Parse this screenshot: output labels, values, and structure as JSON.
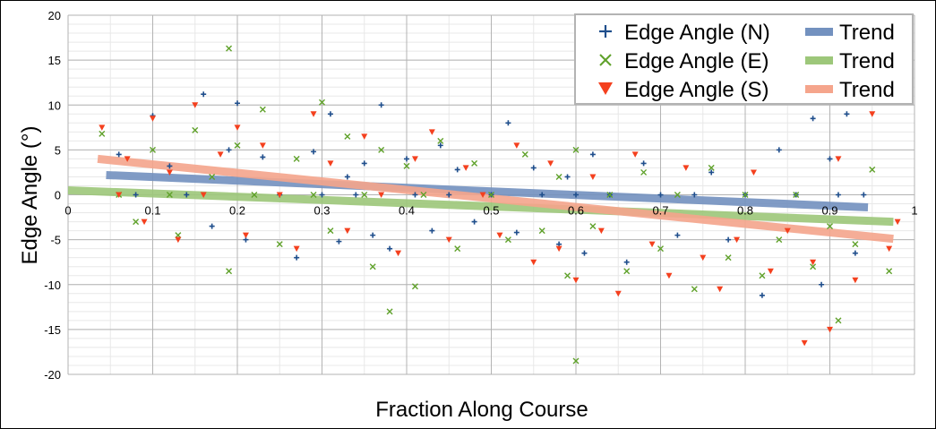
{
  "chart_data": {
    "type": "scatter",
    "xlabel": "Fraction Along Course",
    "ylabel": "Edge Angle (°)",
    "xlim": [
      0,
      1
    ],
    "ylim": [
      -20,
      20
    ],
    "x_ticks": [
      "0",
      "0.1",
      "0.2",
      "0.3",
      "0.4",
      "0.5",
      "0.6",
      "0.7",
      "0.8",
      "0.9",
      "1"
    ],
    "y_ticks": [
      "20",
      "15",
      "10",
      "5",
      "0",
      "-5",
      "-10",
      "-15",
      "-20"
    ],
    "grid": true,
    "legend_position": "top-right",
    "series": [
      {
        "name": "Edge Angle (N)",
        "marker": "plus",
        "color": "#1f4e8c",
        "points": [
          [
            0.06,
            4.5
          ],
          [
            0.08,
            0
          ],
          [
            0.1,
            8.8
          ],
          [
            0.12,
            3.2
          ],
          [
            0.14,
            0
          ],
          [
            0.16,
            11.2
          ],
          [
            0.17,
            -3.5
          ],
          [
            0.19,
            5.0
          ],
          [
            0.2,
            10.2
          ],
          [
            0.21,
            -5.0
          ],
          [
            0.23,
            4.2
          ],
          [
            0.25,
            0
          ],
          [
            0.27,
            -7.0
          ],
          [
            0.29,
            4.8
          ],
          [
            0.3,
            0
          ],
          [
            0.31,
            9.0
          ],
          [
            0.32,
            -5.2
          ],
          [
            0.33,
            2.0
          ],
          [
            0.34,
            0
          ],
          [
            0.35,
            3.5
          ],
          [
            0.36,
            -4.5
          ],
          [
            0.37,
            10.0
          ],
          [
            0.38,
            -6.0
          ],
          [
            0.4,
            4.0
          ],
          [
            0.41,
            0
          ],
          [
            0.43,
            -4.0
          ],
          [
            0.44,
            5.5
          ],
          [
            0.45,
            0
          ],
          [
            0.46,
            2.8
          ],
          [
            0.48,
            -3.0
          ],
          [
            0.5,
            0
          ],
          [
            0.52,
            8.0
          ],
          [
            0.53,
            -4.2
          ],
          [
            0.55,
            3.0
          ],
          [
            0.56,
            0
          ],
          [
            0.58,
            -5.5
          ],
          [
            0.59,
            2.0
          ],
          [
            0.6,
            0
          ],
          [
            0.61,
            -6.5
          ],
          [
            0.62,
            4.5
          ],
          [
            0.64,
            0
          ],
          [
            0.66,
            -7.5
          ],
          [
            0.68,
            3.5
          ],
          [
            0.7,
            0
          ],
          [
            0.72,
            -4.5
          ],
          [
            0.74,
            0
          ],
          [
            0.76,
            2.5
          ],
          [
            0.78,
            -5.0
          ],
          [
            0.8,
            0
          ],
          [
            0.82,
            -11.2
          ],
          [
            0.84,
            5.0
          ],
          [
            0.86,
            0
          ],
          [
            0.88,
            8.5
          ],
          [
            0.89,
            -10.0
          ],
          [
            0.9,
            4.0
          ],
          [
            0.91,
            0
          ],
          [
            0.92,
            9.0
          ],
          [
            0.93,
            -6.5
          ],
          [
            0.94,
            0
          ]
        ]
      },
      {
        "name": "Edge Angle (E)",
        "marker": "x",
        "color": "#5fa12a",
        "points": [
          [
            0.04,
            6.8
          ],
          [
            0.06,
            0
          ],
          [
            0.08,
            -3.0
          ],
          [
            0.1,
            5.0
          ],
          [
            0.12,
            0
          ],
          [
            0.13,
            -4.5
          ],
          [
            0.15,
            7.2
          ],
          [
            0.17,
            2.0
          ],
          [
            0.19,
            16.3
          ],
          [
            0.19,
            -8.5
          ],
          [
            0.2,
            5.5
          ],
          [
            0.22,
            0
          ],
          [
            0.23,
            9.5
          ],
          [
            0.25,
            -5.5
          ],
          [
            0.27,
            4.0
          ],
          [
            0.29,
            0
          ],
          [
            0.3,
            10.3
          ],
          [
            0.31,
            -4.0
          ],
          [
            0.33,
            6.5
          ],
          [
            0.35,
            0
          ],
          [
            0.36,
            -8.0
          ],
          [
            0.37,
            5.0
          ],
          [
            0.38,
            -13.0
          ],
          [
            0.4,
            3.2
          ],
          [
            0.41,
            -10.2
          ],
          [
            0.42,
            0
          ],
          [
            0.44,
            6.0
          ],
          [
            0.46,
            -6.0
          ],
          [
            0.48,
            3.5
          ],
          [
            0.5,
            0
          ],
          [
            0.52,
            -5.0
          ],
          [
            0.54,
            4.5
          ],
          [
            0.56,
            -4.0
          ],
          [
            0.58,
            2.0
          ],
          [
            0.59,
            -9.0
          ],
          [
            0.6,
            5.0
          ],
          [
            0.6,
            -18.5
          ],
          [
            0.62,
            -3.5
          ],
          [
            0.64,
            0
          ],
          [
            0.66,
            -8.5
          ],
          [
            0.68,
            2.5
          ],
          [
            0.7,
            -6.0
          ],
          [
            0.72,
            0
          ],
          [
            0.74,
            -10.5
          ],
          [
            0.76,
            3.0
          ],
          [
            0.78,
            -7.0
          ],
          [
            0.8,
            0
          ],
          [
            0.82,
            -9.0
          ],
          [
            0.84,
            -5.0
          ],
          [
            0.86,
            0
          ],
          [
            0.88,
            -8.0
          ],
          [
            0.9,
            -3.5
          ],
          [
            0.91,
            -14.0
          ],
          [
            0.93,
            -5.5
          ],
          [
            0.95,
            2.8
          ],
          [
            0.97,
            -8.5
          ]
        ]
      },
      {
        "name": "Edge Angle (S)",
        "marker": "triangle-down",
        "color": "#f4401e",
        "points": [
          [
            0.04,
            7.5
          ],
          [
            0.06,
            0
          ],
          [
            0.07,
            4.0
          ],
          [
            0.09,
            -3.0
          ],
          [
            0.1,
            8.5
          ],
          [
            0.12,
            2.5
          ],
          [
            0.13,
            -5.0
          ],
          [
            0.15,
            10.0
          ],
          [
            0.16,
            0
          ],
          [
            0.18,
            4.5
          ],
          [
            0.2,
            7.5
          ],
          [
            0.21,
            -4.5
          ],
          [
            0.23,
            5.5
          ],
          [
            0.25,
            0
          ],
          [
            0.27,
            -6.0
          ],
          [
            0.29,
            9.0
          ],
          [
            0.31,
            3.5
          ],
          [
            0.33,
            -4.0
          ],
          [
            0.35,
            6.5
          ],
          [
            0.37,
            0
          ],
          [
            0.39,
            -6.5
          ],
          [
            0.41,
            4.0
          ],
          [
            0.43,
            7.0
          ],
          [
            0.45,
            -5.0
          ],
          [
            0.47,
            3.0
          ],
          [
            0.49,
            0
          ],
          [
            0.51,
            -4.5
          ],
          [
            0.53,
            5.5
          ],
          [
            0.55,
            -7.5
          ],
          [
            0.57,
            3.5
          ],
          [
            0.58,
            -6.0
          ],
          [
            0.6,
            -9.5
          ],
          [
            0.62,
            2.0
          ],
          [
            0.63,
            -4.0
          ],
          [
            0.65,
            -11.0
          ],
          [
            0.67,
            4.5
          ],
          [
            0.69,
            -5.5
          ],
          [
            0.71,
            -9.0
          ],
          [
            0.73,
            3.0
          ],
          [
            0.75,
            -7.0
          ],
          [
            0.77,
            -10.5
          ],
          [
            0.79,
            -5.0
          ],
          [
            0.81,
            2.5
          ],
          [
            0.83,
            -8.5
          ],
          [
            0.85,
            -4.0
          ],
          [
            0.87,
            -16.5
          ],
          [
            0.88,
            -7.5
          ],
          [
            0.9,
            -15.0
          ],
          [
            0.91,
            4.0
          ],
          [
            0.93,
            -9.5
          ],
          [
            0.95,
            9.0
          ],
          [
            0.97,
            -6.0
          ],
          [
            0.98,
            -3.0
          ]
        ]
      }
    ],
    "trends": [
      {
        "name": "Trend",
        "color": "#7391bf",
        "x": [
          0.045,
          0.945
        ],
        "y": [
          2.2,
          -1.4
        ]
      },
      {
        "name": "Trend",
        "color": "#9dc77a",
        "x": [
          0.0,
          0.975
        ],
        "y": [
          0.5,
          -3.0
        ]
      },
      {
        "name": "Trend",
        "color": "#f5a58c",
        "x": [
          0.035,
          0.975
        ],
        "y": [
          4.0,
          -4.9
        ]
      }
    ]
  }
}
